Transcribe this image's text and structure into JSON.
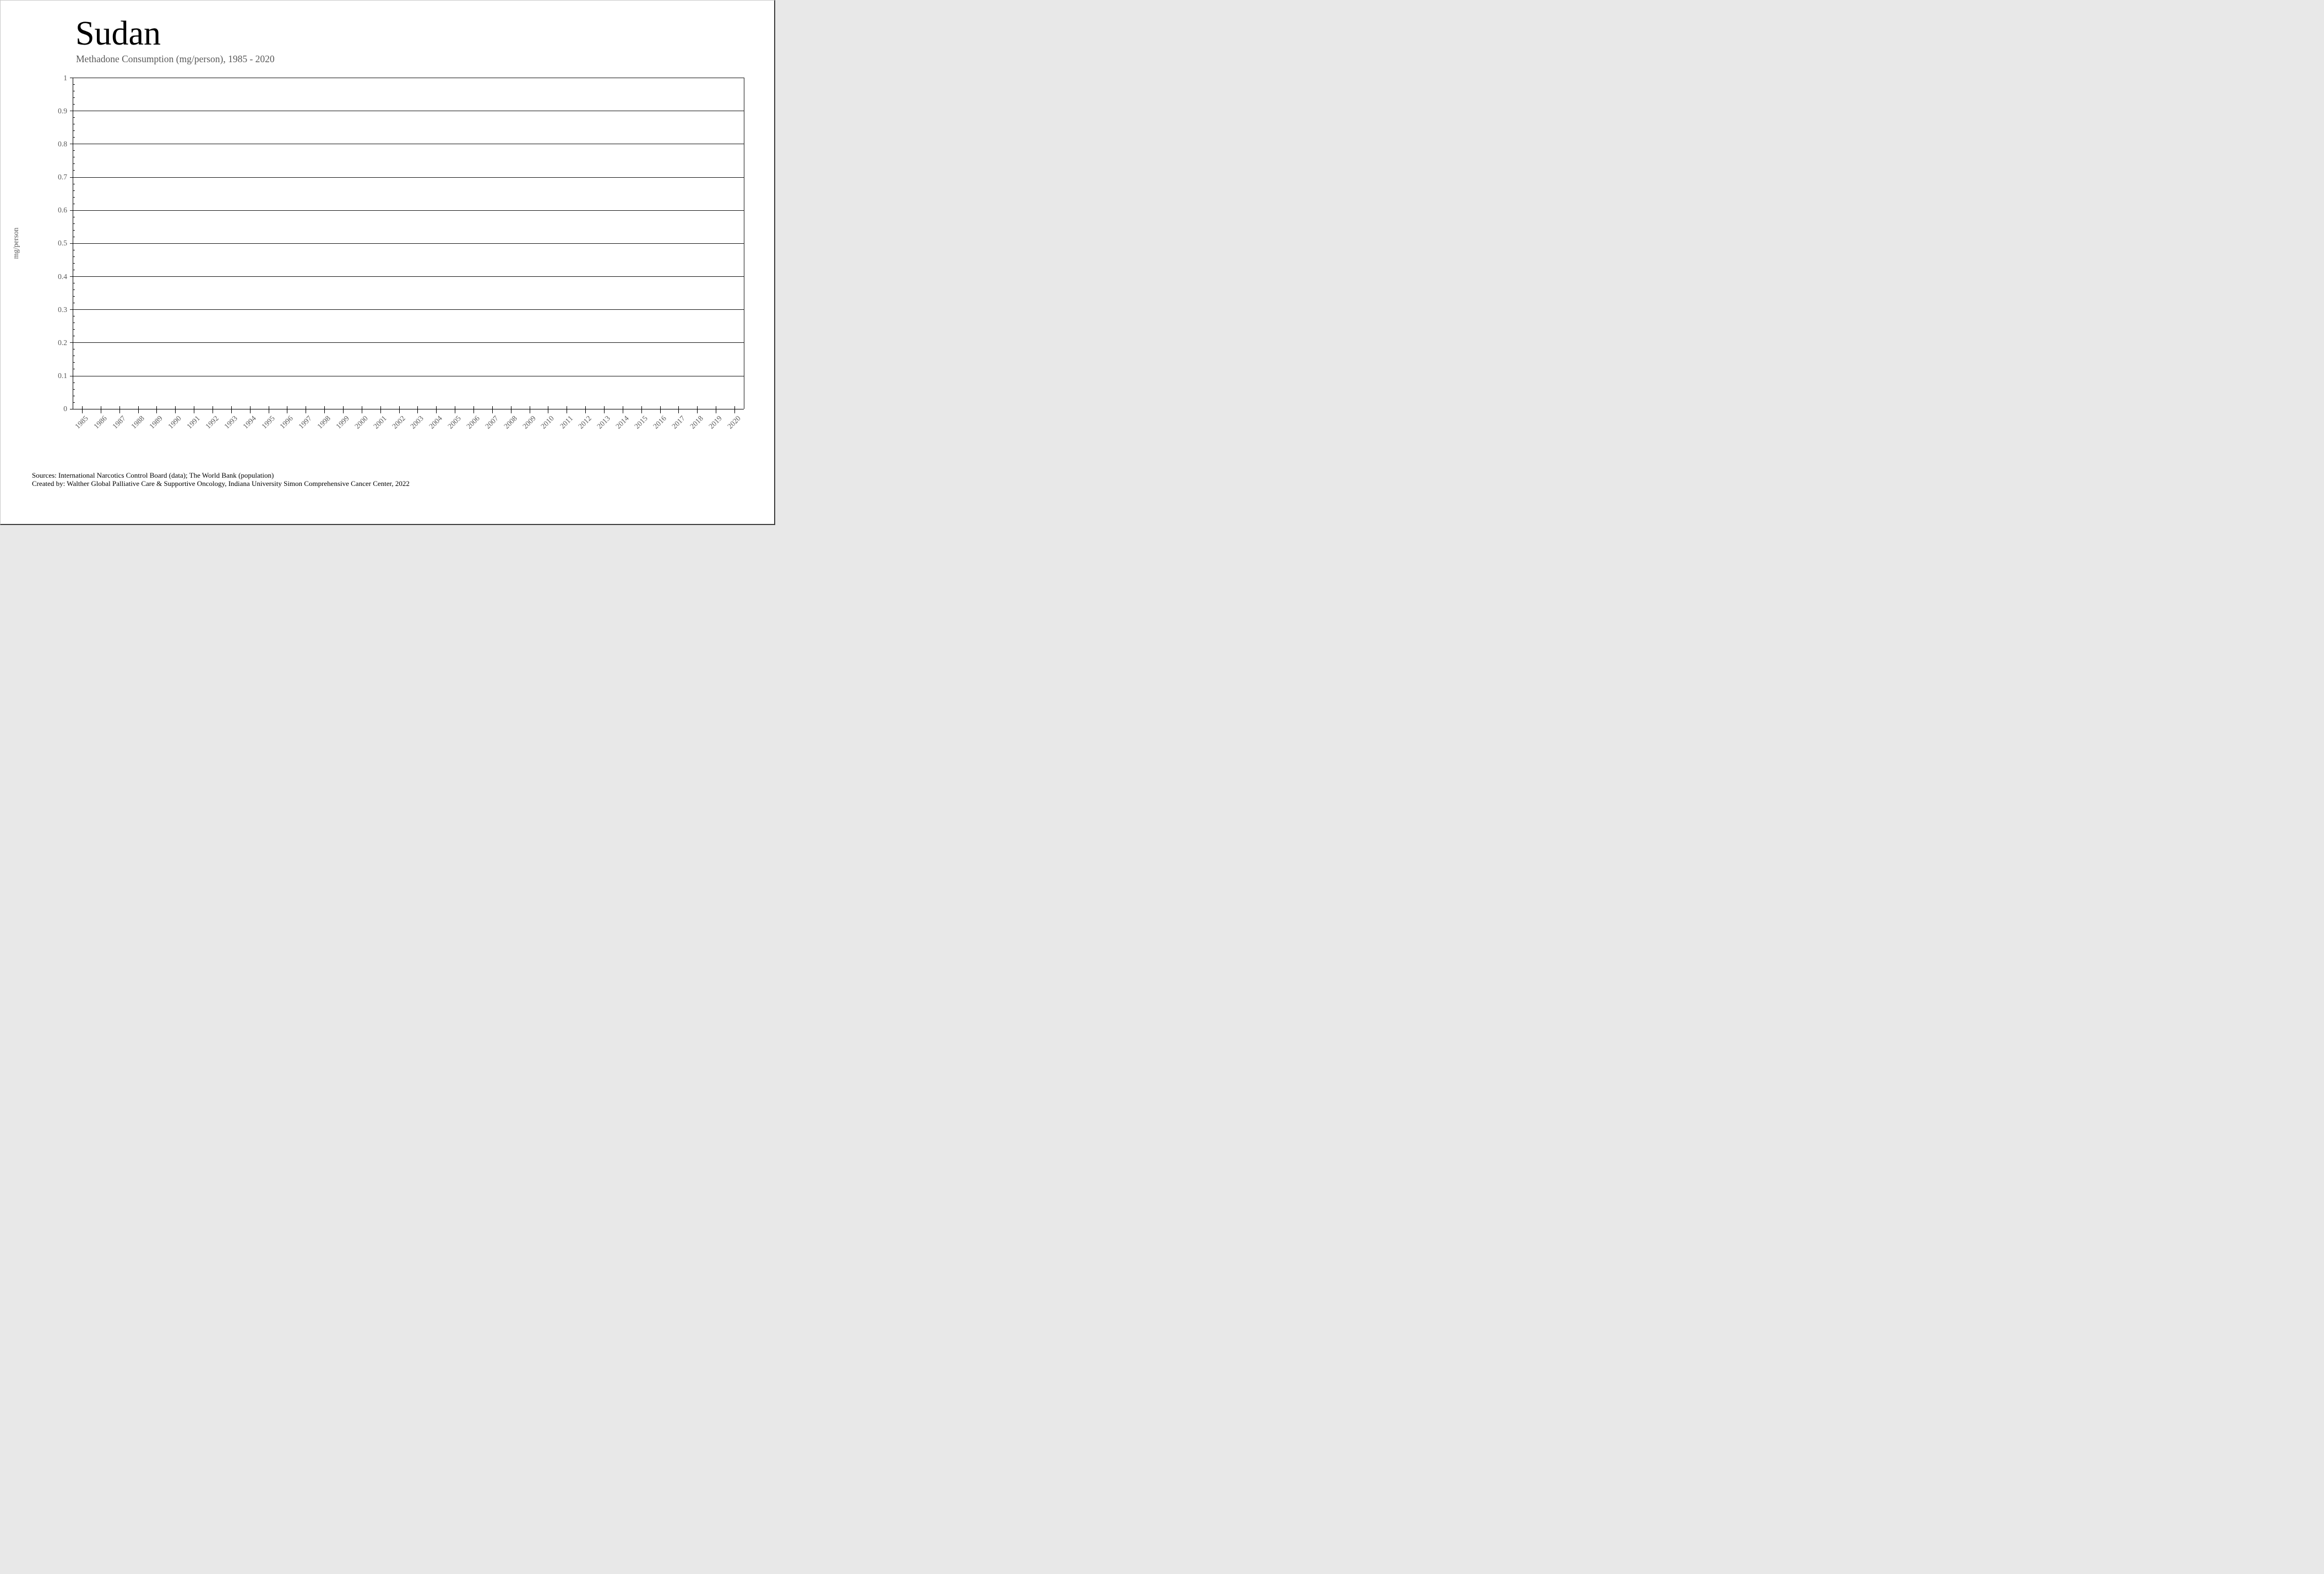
{
  "header": {
    "title": "Sudan",
    "subtitle": "Methadone Consumption (mg/person), 1985 - 2020"
  },
  "footer": {
    "sources_line": "Sources: International Narcotics Control Board (data); The World Bank (population)",
    "credit_line": "Created by: Walther Global Palliative Care & Supportive Oncology, Indiana University Simon Comprehensive Cancer Center, 2022"
  },
  "colors": {
    "background": "#ffffff",
    "text_primary": "#000000",
    "text_secondary": "#595959",
    "axis": "#000000",
    "gridline": "#1a1a1a"
  },
  "chart_data": {
    "type": "line",
    "title": "Sudan",
    "subtitle": "Methadone Consumption (mg/person), 1985 - 2020",
    "xlabel": "",
    "ylabel": "mg/person",
    "ylim": [
      0,
      1
    ],
    "ytick_step": 0.1,
    "minor_ytick_step": 0.02,
    "ytick_labels": [
      "1",
      "0.9",
      "0.8",
      "0.7",
      "0.6",
      "0.5",
      "0.4",
      "0.3",
      "0.2",
      "0.1",
      "0"
    ],
    "grid": "horizontal-major",
    "legend": "none",
    "categories": [
      "1985",
      "1986",
      "1987",
      "1988",
      "1989",
      "1990",
      "1991",
      "1992",
      "1993",
      "1994",
      "1995",
      "1996",
      "1997",
      "1998",
      "1999",
      "2000",
      "2001",
      "2002",
      "2003",
      "2004",
      "2005",
      "2006",
      "2007",
      "2008",
      "2009",
      "2010",
      "2011",
      "2012",
      "2013",
      "2014",
      "2015",
      "2016",
      "2017",
      "2018",
      "2019",
      "2020"
    ],
    "series": [
      {
        "name": "Methadone Consumption (mg/person)",
        "values": [
          0,
          0,
          0,
          0,
          0,
          0,
          0,
          0,
          0,
          0,
          0,
          0,
          0,
          0,
          0,
          0,
          0,
          0,
          0,
          0,
          0,
          0,
          0,
          0,
          0,
          0,
          0,
          0,
          0,
          0,
          0,
          0,
          0,
          0,
          0,
          0
        ],
        "visible": false
      }
    ],
    "note": "Plot area is empty: no visible data line, all values at 0"
  }
}
